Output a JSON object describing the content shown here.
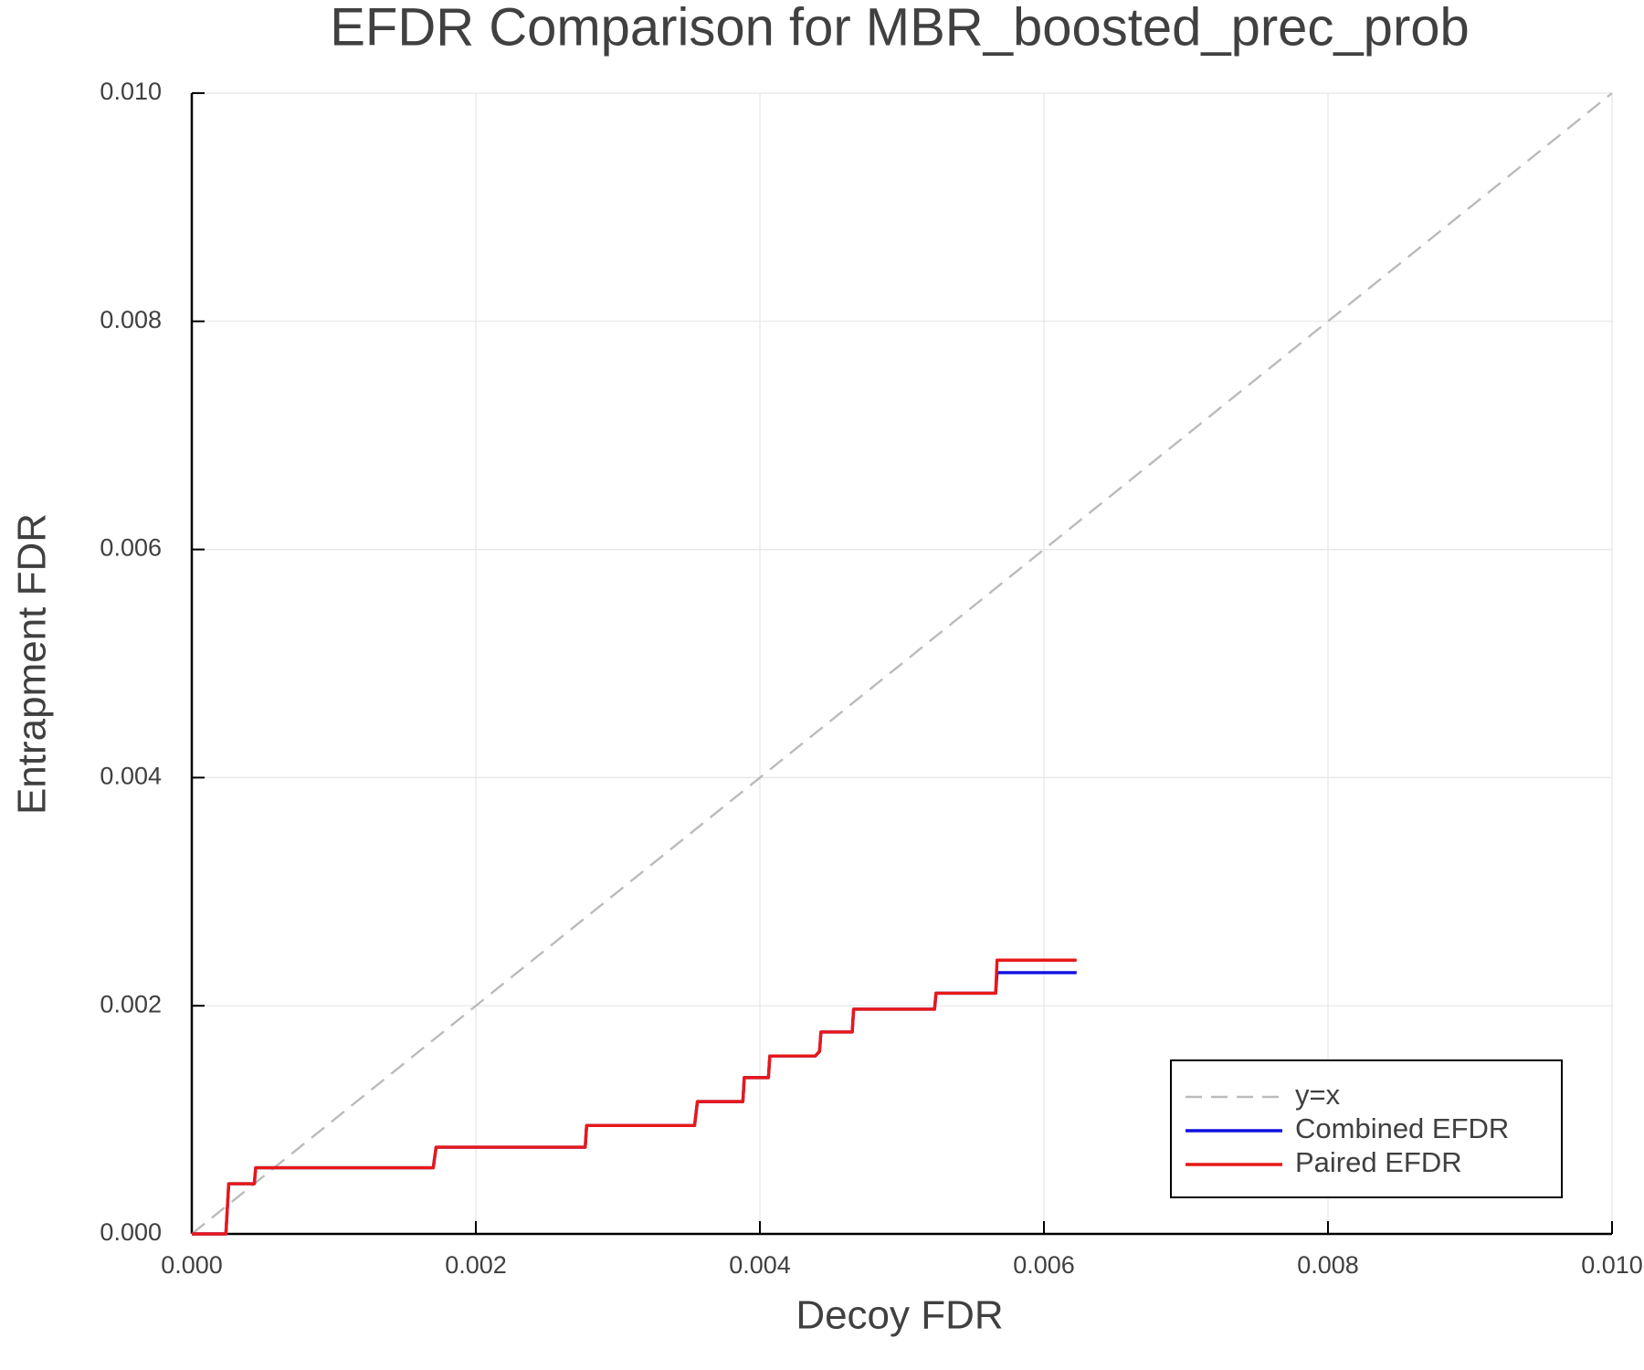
{
  "chart_data": {
    "type": "line",
    "title": "EFDR Comparison for MBR_boosted_prec_prob",
    "x_label": "Decoy FDR",
    "y_label": "Entrapment FDR",
    "xlim": [
      0,
      0.01
    ],
    "ylim": [
      0,
      0.01
    ],
    "xticks": [
      {
        "value": 0,
        "label": "0.000"
      },
      {
        "value": 0.002,
        "label": "0.002"
      },
      {
        "value": 0.004,
        "label": "0.004"
      },
      {
        "value": 0.006,
        "label": "0.006"
      },
      {
        "value": 0.008,
        "label": "0.008"
      },
      {
        "value": 0.01,
        "label": "0.010"
      }
    ],
    "yticks": [
      {
        "value": 0,
        "label": "0.000"
      },
      {
        "value": 0.002,
        "label": "0.002"
      },
      {
        "value": 0.004,
        "label": "0.004"
      },
      {
        "value": 0.006,
        "label": "0.006"
      },
      {
        "value": 0.008,
        "label": "0.008"
      },
      {
        "value": 0.01,
        "label": "0.010"
      }
    ],
    "grid": true,
    "legend": "lower right",
    "series": [
      {
        "name": "y=x",
        "color": "#bbbbbb",
        "dashed": true,
        "x": [
          0,
          0.01
        ],
        "values": [
          0,
          0.01
        ]
      },
      {
        "name": "Combined EFDR",
        "color": "#1010e0",
        "dashed": false,
        "x": [
          0,
          0.00024,
          0.00026,
          0.00044,
          0.00045,
          0.0017,
          0.00172,
          0.00277,
          0.00278,
          0.00354,
          0.00356,
          0.00388,
          0.00389,
          0.00406,
          0.00407,
          0.00439,
          0.00442,
          0.00443,
          0.00465,
          0.00466,
          0.00523,
          0.00524,
          0.00566,
          0.00567,
          0.00623
        ],
        "values": [
          0,
          0,
          0.00044,
          0.00044,
          0.00058,
          0.00058,
          0.00076,
          0.00076,
          0.00095,
          0.00095,
          0.00116,
          0.00116,
          0.00137,
          0.00137,
          0.00156,
          0.00156,
          0.0016,
          0.00177,
          0.00177,
          0.00197,
          0.00197,
          0.00211,
          0.00211,
          0.00229,
          0.00229
        ]
      },
      {
        "name": "Paired EFDR",
        "color": "#e81818",
        "dashed": false,
        "x": [
          0,
          0.00024,
          0.00026,
          0.00044,
          0.00045,
          0.0017,
          0.00172,
          0.00277,
          0.00278,
          0.00354,
          0.00356,
          0.00388,
          0.00389,
          0.00406,
          0.00407,
          0.00439,
          0.00442,
          0.00443,
          0.00465,
          0.00466,
          0.00523,
          0.00524,
          0.00566,
          0.00567,
          0.00623
        ],
        "values": [
          0,
          0,
          0.00044,
          0.00044,
          0.00058,
          0.00058,
          0.00076,
          0.00076,
          0.00095,
          0.00095,
          0.00116,
          0.00116,
          0.00137,
          0.00137,
          0.00156,
          0.00156,
          0.0016,
          0.00177,
          0.00177,
          0.00197,
          0.00197,
          0.00211,
          0.00211,
          0.0024,
          0.0024
        ]
      }
    ]
  }
}
